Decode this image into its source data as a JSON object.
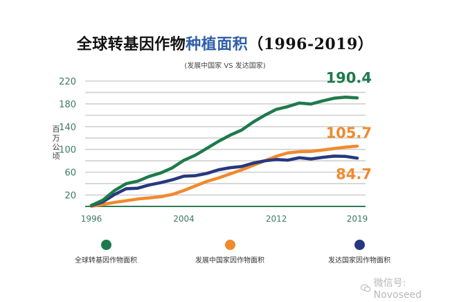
{
  "chart_data": {
    "type": "line",
    "title_part1": "全球转基因作物",
    "title_part2": "种植面积",
    "title_part3": "（1996-2019）",
    "subtitle": "(发展中国家 VS 发达国家)",
    "ylabel": "百万公顷",
    "xlabel": "",
    "ylim": [
      0,
      220
    ],
    "yticks": [
      20,
      60,
      100,
      140,
      180,
      220
    ],
    "gridlines": [
      20,
      40,
      60,
      80,
      100,
      120,
      140,
      160,
      180,
      200,
      220
    ],
    "xticks": [
      "1996",
      "2004",
      "2012",
      "2019"
    ],
    "x": [
      1996,
      1997,
      1998,
      1999,
      2000,
      2001,
      2002,
      2003,
      2004,
      2005,
      2006,
      2007,
      2008,
      2009,
      2010,
      2011,
      2012,
      2013,
      2014,
      2015,
      2016,
      2017,
      2018,
      2019
    ],
    "grid": true,
    "legend_position": "bottom",
    "series": [
      {
        "name": "全球转基因作物面积",
        "color": "#1e7a4c",
        "values": [
          1.7,
          11,
          27.8,
          39.9,
          44.2,
          52.6,
          58.7,
          67.7,
          81,
          90,
          102,
          114.3,
          125,
          134,
          148,
          160,
          170.3,
          175.2,
          181.5,
          179.7,
          185.1,
          189.8,
          191.7,
          190.4
        ],
        "end_label": "190.4"
      },
      {
        "name": "发展中国家因作物面积",
        "color": "#f08a2e",
        "values": [
          0.2,
          3.5,
          7,
          10,
          13,
          15,
          17,
          21,
          28,
          36,
          44,
          50,
          57,
          64,
          72,
          80,
          88,
          94,
          96,
          96.5,
          99,
          101.5,
          104,
          105.7
        ],
        "end_label": "105.7"
      },
      {
        "name": "发达国家因作物面积",
        "color": "#27387f",
        "values": [
          1.5,
          8,
          20.8,
          31,
          32,
          37.6,
          41.7,
          46.7,
          53,
          54,
          58,
          64.3,
          68,
          70,
          76,
          80,
          82.3,
          81.2,
          85.5,
          83.2,
          86.1,
          88.3,
          87.7,
          84.7
        ],
        "end_label": "84.7"
      }
    ]
  },
  "watermark": "微信号: Novoseed"
}
